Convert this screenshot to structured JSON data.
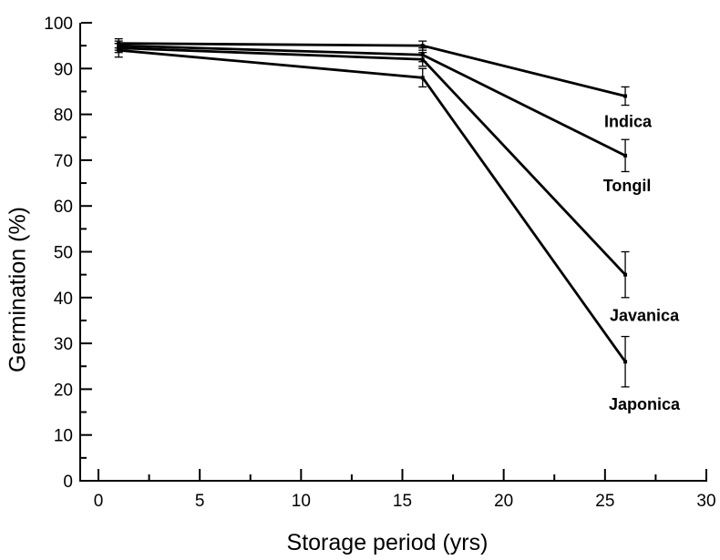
{
  "chart_data": {
    "type": "line",
    "title": "",
    "xlabel": "Storage period (yrs)",
    "ylabel": "Germination (%)",
    "x_axis": {
      "ticks": [
        0,
        5,
        10,
        15,
        20,
        25,
        30
      ],
      "minor_step": 2.5,
      "range": [
        -1,
        30
      ]
    },
    "y_axis": {
      "ticks": [
        0,
        10,
        20,
        30,
        40,
        50,
        60,
        70,
        80,
        90,
        100
      ],
      "minor_step": 5,
      "range": [
        0,
        100
      ]
    },
    "grid": "off",
    "legend": "direct-labels-at-line-ends",
    "line_color": "#000000",
    "series": [
      {
        "name": "Indica",
        "x": [
          1,
          16,
          26
        ],
        "y": [
          95.5,
          95,
          84
        ],
        "yerr": [
          1,
          1,
          2
        ],
        "label_offset": [
          3,
          34
        ]
      },
      {
        "name": "Tongil",
        "x": [
          1,
          16,
          26
        ],
        "y": [
          95,
          93,
          71
        ],
        "yerr": [
          1,
          1.5,
          3.5
        ],
        "label_offset": [
          2,
          39
        ]
      },
      {
        "name": "Javanica",
        "x": [
          1,
          16,
          26
        ],
        "y": [
          94.5,
          92,
          45
        ],
        "yerr": [
          1,
          1.5,
          5
        ],
        "label_offset": [
          21,
          51
        ]
      },
      {
        "name": "Japonica",
        "x": [
          1,
          16,
          26
        ],
        "y": [
          94,
          88,
          26
        ],
        "yerr": [
          1.5,
          2,
          5.5
        ],
        "label_offset": [
          21,
          53
        ]
      }
    ]
  }
}
